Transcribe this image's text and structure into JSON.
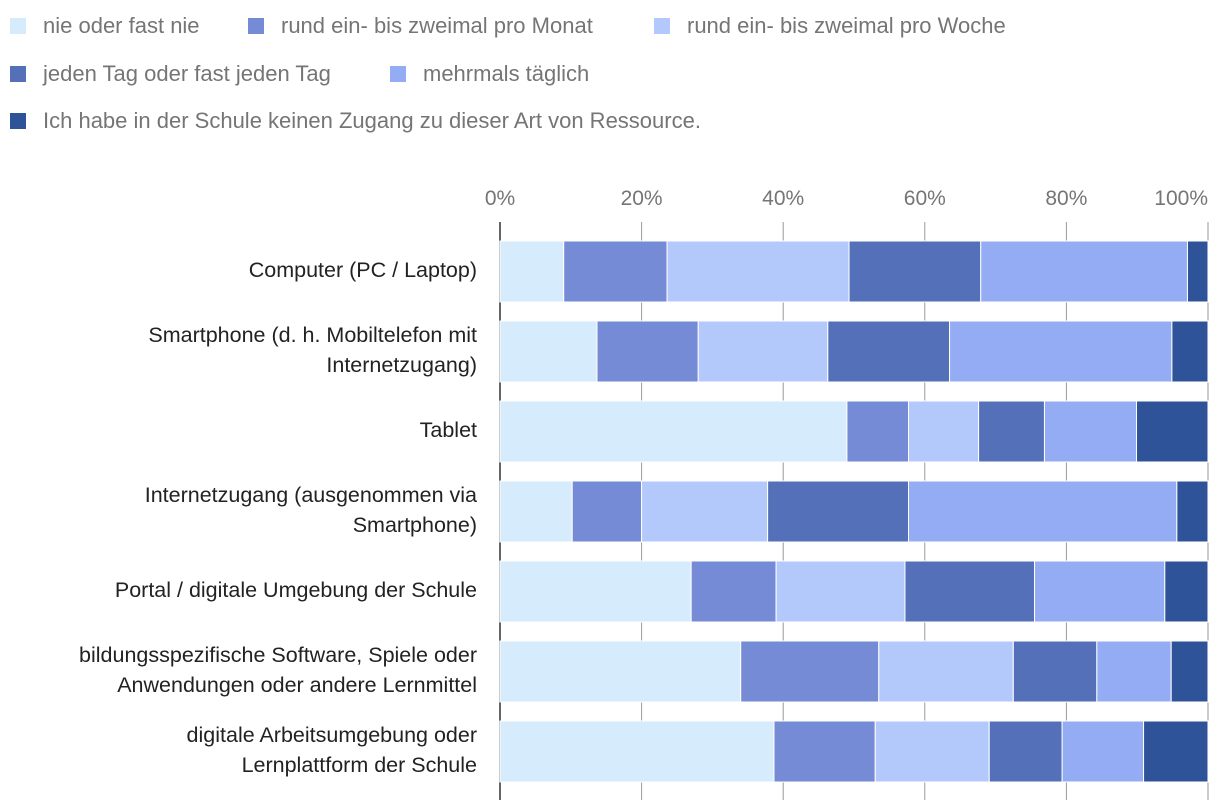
{
  "chart_data": {
    "type": "bar",
    "orientation": "horizontal",
    "stacked": true,
    "percent": true,
    "title": "",
    "xlabel": "",
    "ylabel": "",
    "xlim": [
      0,
      100
    ],
    "x_ticks": [
      "0%",
      "20%",
      "40%",
      "60%",
      "80%",
      "100%"
    ],
    "grid": true,
    "legend_position": "top",
    "categories": [
      [
        "Computer (PC / Laptop)"
      ],
      [
        "Smartphone (d. h. Mobiltelefon mit",
        "Internetzugang)"
      ],
      [
        "Tablet"
      ],
      [
        "Internetzugang (ausgenommen via",
        "Smartphone)"
      ],
      [
        "Portal / digitale Umgebung der Schule"
      ],
      [
        "bildungsspezifische Software, Spiele oder",
        "Anwendungen oder andere Lernmittel"
      ],
      [
        "digitale Arbeitsumgebung oder",
        "Lernplattform der Schule"
      ]
    ],
    "series": [
      {
        "name": "nie oder fast nie",
        "color": "#d6ebfb",
        "values": [
          9.0,
          13.7,
          49.0,
          10.2,
          27.0,
          34.0,
          38.7
        ]
      },
      {
        "name": "rund ein- bis zweimal pro Monat",
        "color": "#758bd6",
        "values": [
          14.6,
          14.3,
          8.7,
          9.8,
          12.0,
          19.5,
          14.3
        ]
      },
      {
        "name": "rund ein- bis zweimal pro Woche",
        "color": "#b4c9fb",
        "values": [
          25.7,
          18.3,
          9.9,
          17.8,
          18.2,
          19.0,
          16.1
        ]
      },
      {
        "name": "jeden Tag oder fast jeden Tag",
        "color": "#5470b8",
        "values": [
          18.6,
          17.2,
          9.3,
          19.9,
          18.3,
          11.8,
          10.3
        ]
      },
      {
        "name": "mehrmals täglich",
        "color": "#94acf4",
        "values": [
          29.2,
          31.4,
          13.0,
          37.9,
          18.4,
          10.5,
          11.5
        ]
      },
      {
        "name": "Ich habe in der Schule keinen Zugang zu dieser Art von Ressource.",
        "color": "#2f5398",
        "values": [
          2.9,
          5.1,
          10.1,
          4.4,
          6.1,
          5.2,
          9.1
        ]
      }
    ]
  }
}
